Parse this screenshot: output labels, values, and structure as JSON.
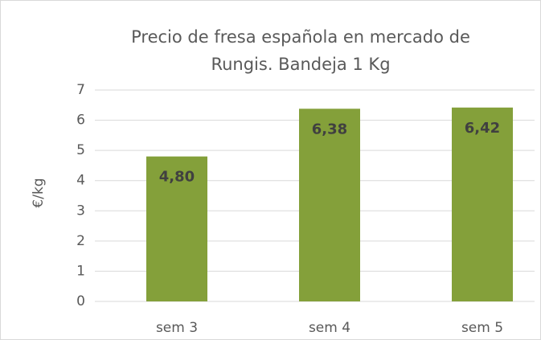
{
  "chart_data": {
    "type": "bar",
    "title": [
      "Precio de fresa española en mercado de",
      "Rungis. Bandeja 1 Kg"
    ],
    "ylabel": "€/kg",
    "categories": [
      "sem 3",
      "sem 4",
      "sem 5"
    ],
    "values": [
      4.8,
      6.38,
      6.42
    ],
    "value_labels": [
      "4,80",
      "6,38",
      "6,42"
    ],
    "color": "#84a03a",
    "ylim": [
      0,
      7
    ],
    "yticks": [
      0,
      1,
      2,
      3,
      4,
      5,
      6,
      7
    ],
    "grid": true
  }
}
